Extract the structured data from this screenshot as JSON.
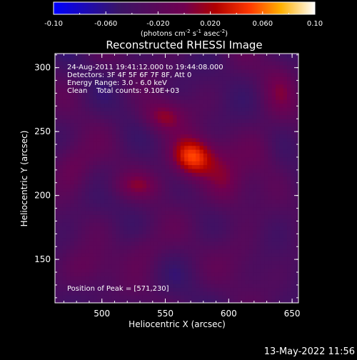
{
  "chart_data": {
    "type": "heatmap",
    "title": "Reconstructed RHESSI Image",
    "xlabel": "Heliocentric X (arcsec)",
    "ylabel": "Heliocentric Y (arcsec)",
    "xlim": [
      463,
      655
    ],
    "ylim": [
      116,
      311
    ],
    "x_ticks": [
      "500",
      "550",
      "600",
      "650"
    ],
    "y_ticks": [
      "150",
      "200",
      "250",
      "300"
    ],
    "x_tick_values": [
      500,
      550,
      600,
      650
    ],
    "y_tick_values": [
      150,
      200,
      250,
      300
    ],
    "colorbar": {
      "range": [
        -0.1,
        0.1
      ],
      "tick_labels": [
        "-0.10",
        "-0.060",
        "-0.020",
        "0.020",
        "0.060",
        "0.10"
      ],
      "tick_values": [
        -0.1,
        -0.06,
        -0.02,
        0.02,
        0.06,
        0.1
      ],
      "unit_label": "(photons cm",
      "unit_exp1": "-2",
      "unit_mid": " s",
      "unit_exp2": "-1",
      "unit_mid2": " asec",
      "unit_exp3": "-2",
      "unit_end": ")"
    },
    "annotations": {
      "line1": "24-Aug-2011 19:41:12.000 to 19:44:08.000",
      "line2": "Detectors: 3F 4F 5F 6F 7F 8F, Att 0",
      "line3": "Energy Range: 3.0 - 6.0 keV",
      "line4": "Clean    Total counts: 9.10E+03",
      "peak": "Position of Peak = [571,230]"
    },
    "peak": {
      "x": 571,
      "y": 230,
      "value": 0.1
    },
    "sources": [
      {
        "x": 571,
        "y": 230,
        "sx": 12,
        "sy": 11,
        "value": 0.09
      },
      {
        "x": 548,
        "y": 262,
        "sx": 12,
        "sy": 9,
        "value": 0.045
      },
      {
        "x": 598,
        "y": 210,
        "sx": 12,
        "sy": 16,
        "value": 0.035
      },
      {
        "x": 527,
        "y": 208,
        "sx": 18,
        "sy": 7,
        "value": 0.025
      },
      {
        "x": 478,
        "y": 225,
        "sx": 12,
        "sy": 14,
        "value": 0.03
      },
      {
        "x": 535,
        "y": 160,
        "sx": 12,
        "sy": 12,
        "value": 0.025
      },
      {
        "x": 490,
        "y": 142,
        "sx": 14,
        "sy": 12,
        "value": 0.022
      },
      {
        "x": 640,
        "y": 283,
        "sx": 10,
        "sy": 22,
        "value": 0.022
      },
      {
        "x": 625,
        "y": 235,
        "sx": 10,
        "sy": 14,
        "value": 0.02
      },
      {
        "x": 612,
        "y": 150,
        "sx": 14,
        "sy": 16,
        "value": 0.015
      }
    ],
    "background_level": -0.035
  },
  "timestamp": "13-May-2022 11:56"
}
